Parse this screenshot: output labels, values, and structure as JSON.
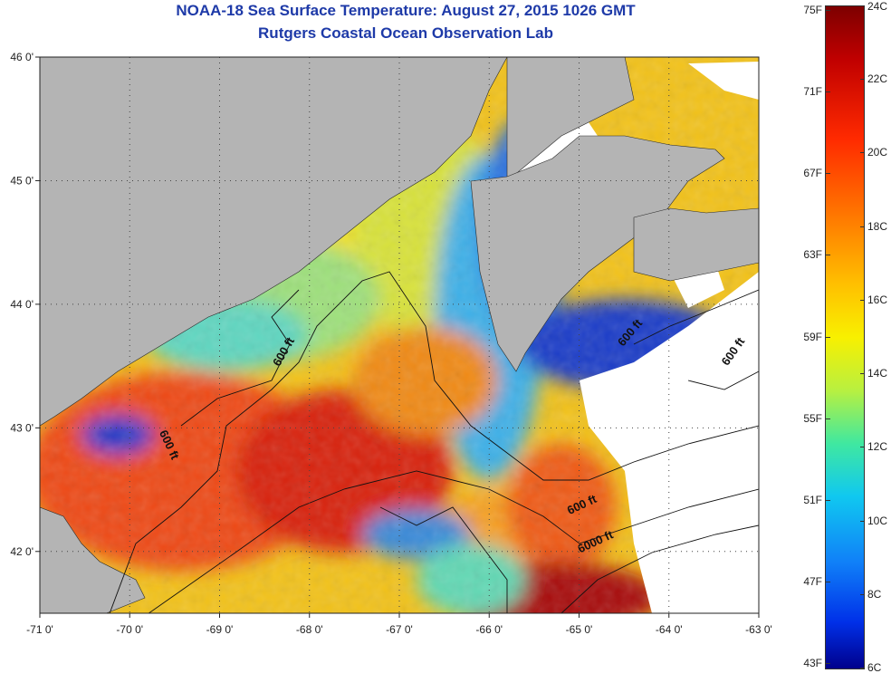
{
  "title": {
    "line1": "NOAA-18 Sea Surface Temperature:  August 27, 2015 1026 GMT",
    "line2": "Rutgers Coastal Ocean Observation Lab"
  },
  "map": {
    "lon_range": [
      -71,
      -63
    ],
    "lat_range": [
      41.5,
      46
    ],
    "x_ticks": [
      {
        "value": -71,
        "label": "-71 0'"
      },
      {
        "value": -70,
        "label": "-70 0'"
      },
      {
        "value": -69,
        "label": "-69 0'"
      },
      {
        "value": -68,
        "label": "-68 0'"
      },
      {
        "value": -67,
        "label": "-67 0'"
      },
      {
        "value": -66,
        "label": "-66 0'"
      },
      {
        "value": -65,
        "label": "-65 0'"
      },
      {
        "value": -64,
        "label": "-64 0'"
      },
      {
        "value": -63,
        "label": "-63 0'"
      }
    ],
    "y_ticks": [
      {
        "value": 46,
        "label": "46 0'"
      },
      {
        "value": 45,
        "label": "45 0'"
      },
      {
        "value": 44,
        "label": "44 0'"
      },
      {
        "value": 43,
        "label": "43 0'"
      },
      {
        "value": 42,
        "label": "42 0'"
      }
    ],
    "contour_labels": [
      {
        "text": "600 ft",
        "lon": -68.25,
        "lat": 43.6,
        "angle": -60
      },
      {
        "text": "600 ft",
        "lon": -69.6,
        "lat": 42.85,
        "angle": 65
      },
      {
        "text": "600 ft",
        "lon": -64.4,
        "lat": 43.75,
        "angle": -50
      },
      {
        "text": "600 ft",
        "lon": -63.25,
        "lat": 43.6,
        "angle": -55
      },
      {
        "text": "600 ft",
        "lon": -64.95,
        "lat": 42.35,
        "angle": -25
      },
      {
        "text": "6000 ft",
        "lon": -64.8,
        "lat": 42.05,
        "angle": -25
      }
    ],
    "colors": {
      "land": "#b4b4b4",
      "cloud": "#ffffff",
      "grid": "#444444"
    }
  },
  "colorbar": {
    "min_c": 6,
    "max_c": 24,
    "celsius_labels": [
      "24C",
      "22C",
      "20C",
      "18C",
      "16C",
      "14C",
      "12C",
      "10C",
      "8C",
      "6C"
    ],
    "fahrenheit_labels": [
      "75F",
      "71F",
      "67F",
      "63F",
      "59F",
      "55F",
      "51F",
      "47F",
      "43F"
    ],
    "fahrenheit_values": [
      75,
      71,
      67,
      63,
      59,
      55,
      51,
      47,
      43
    ]
  }
}
